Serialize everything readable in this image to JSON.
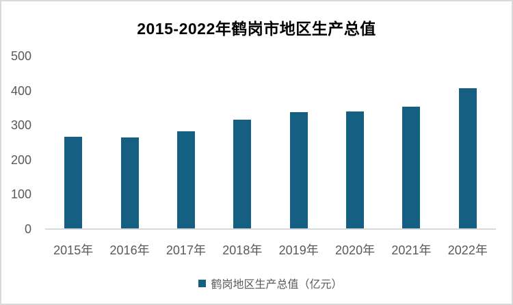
{
  "page": {
    "background": "#ffffff",
    "border_color": "#d9d9d9"
  },
  "chart_data": {
    "type": "bar",
    "title": "2015-2022年鹤岗市地区生产总值",
    "categories": [
      "2015年",
      "2016年",
      "2017年",
      "2018年",
      "2019年",
      "2020年",
      "2021年",
      "2022年"
    ],
    "series": [
      {
        "name": "鹤岗地区生产总值（亿元）",
        "values": [
          266,
          264,
          283,
          317,
          338,
          340,
          354,
          408
        ]
      }
    ],
    "xlabel": "",
    "ylabel": "",
    "ylim": [
      0,
      500
    ],
    "yticks": [
      0,
      100,
      200,
      300,
      400,
      500
    ],
    "grid": false,
    "legend_position": "bottom",
    "colors": {
      "bar": "#156082",
      "axis_text": "#595959",
      "axis_line": "#d9d9d9",
      "title_text": "#000000"
    }
  },
  "legend": {
    "label": "鹤岗地区生产总值（亿元）"
  }
}
